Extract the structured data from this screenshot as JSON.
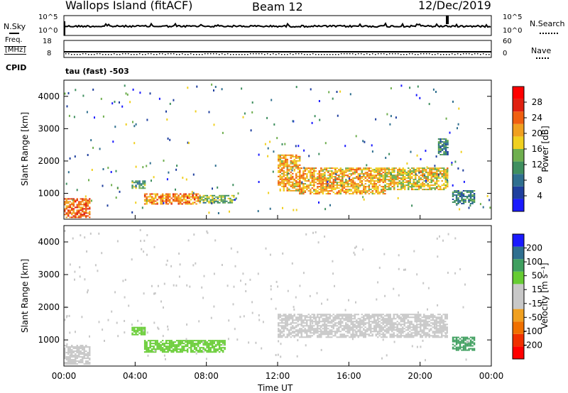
{
  "header": {
    "station": "Wallops Island (fitACF)",
    "beam": "Beam 12",
    "date": "12/Dec/2019"
  },
  "noise_panel": {
    "left_label": "N.Sky",
    "left_ticks": [
      "10^5",
      "10^0"
    ],
    "right_ticks": [
      "10^5",
      "10^0"
    ],
    "right_label": "N.Search"
  },
  "freq_panel": {
    "left_label_1": "Freq.",
    "left_label_2": "[MHz]",
    "left_ticks": [
      "18",
      "8"
    ],
    "right_ticks": [
      "60",
      "0"
    ],
    "right_label": "Nave",
    "cpid_label": "CPID",
    "cpid_value": "tau (fast) -503"
  },
  "colors": {
    "power_scale": [
      "#1a1aff",
      "#1f3f9e",
      "#2f6f8f",
      "#3f8f5f",
      "#6faf4f",
      "#f0d020",
      "#f0a020",
      "#f06010",
      "#e02010",
      "#ff0000"
    ],
    "velocity_scale": [
      "#ff0000",
      "#f03000",
      "#f07000",
      "#f0a020",
      "#c8c8c8",
      "#c8c8c8",
      "#66cc33",
      "#3f9f5f",
      "#2f6f8f",
      "#1a1aff"
    ]
  },
  "chart_data": [
    {
      "type": "heatmap",
      "name": "power",
      "ylabel": "Slant Range [km]",
      "yticks": [
        "1000",
        "2000",
        "3000",
        "4000"
      ],
      "ylim": [
        200,
        4500
      ],
      "xlim": [
        "00:00",
        "24:00"
      ],
      "colorbar_label": "Power [dB]",
      "colorbar_ticks": [
        "4",
        "8",
        "12",
        "16",
        "20",
        "24",
        "28"
      ],
      "colorbar_range": [
        0,
        32
      ],
      "regions": [
        {
          "t0": 0.0,
          "t1": 1.4,
          "r0": 250,
          "r1": 850,
          "value": 24
        },
        {
          "t0": 3.8,
          "t1": 4.5,
          "r0": 1150,
          "r1": 1400,
          "value": 12
        },
        {
          "t0": 4.5,
          "t1": 7.6,
          "r0": 650,
          "r1": 1000,
          "value": 22
        },
        {
          "t0": 7.6,
          "t1": 9.5,
          "r0": 700,
          "r1": 950,
          "value": 14
        },
        {
          "t0": 12.0,
          "t1": 13.2,
          "r0": 1100,
          "r1": 2200,
          "value": 20
        },
        {
          "t0": 13.2,
          "t1": 18.0,
          "r0": 1000,
          "r1": 1800,
          "value": 20
        },
        {
          "t0": 18.0,
          "t1": 21.5,
          "r0": 1100,
          "r1": 1800,
          "value": 18
        },
        {
          "t0": 21.0,
          "t1": 21.5,
          "r0": 2200,
          "r1": 2700,
          "value": 10
        },
        {
          "t0": 21.8,
          "t1": 23.0,
          "r0": 700,
          "r1": 1100,
          "value": 10
        }
      ]
    },
    {
      "type": "heatmap",
      "name": "velocity",
      "ylabel": "Slant Range [km]",
      "yticks": [
        "1000",
        "2000",
        "3000",
        "4000"
      ],
      "ylim": [
        200,
        4500
      ],
      "xlim": [
        "00:00",
        "24:00"
      ],
      "xticks": [
        "00:00",
        "04:00",
        "08:00",
        "12:00",
        "16:00",
        "20:00",
        "00:00"
      ],
      "xlabel": "Time UT",
      "colorbar_label": "Velocity [m s⁻¹]",
      "colorbar_ticks": [
        "-200",
        "-100",
        "-50",
        "-15",
        "15",
        "50",
        "100",
        "200"
      ],
      "regions": [
        {
          "t0": 0.0,
          "t1": 1.4,
          "r0": 250,
          "r1": 850,
          "value": 0
        },
        {
          "t0": 3.8,
          "t1": 4.5,
          "r0": 1150,
          "r1": 1400,
          "value": 30
        },
        {
          "t0": 4.5,
          "t1": 9.0,
          "r0": 650,
          "r1": 1000,
          "value": 30
        },
        {
          "t0": 12.0,
          "t1": 21.5,
          "r0": 1100,
          "r1": 1800,
          "value": 0
        },
        {
          "t0": 21.8,
          "t1": 23.0,
          "r0": 700,
          "r1": 1100,
          "value": 60
        }
      ]
    }
  ]
}
